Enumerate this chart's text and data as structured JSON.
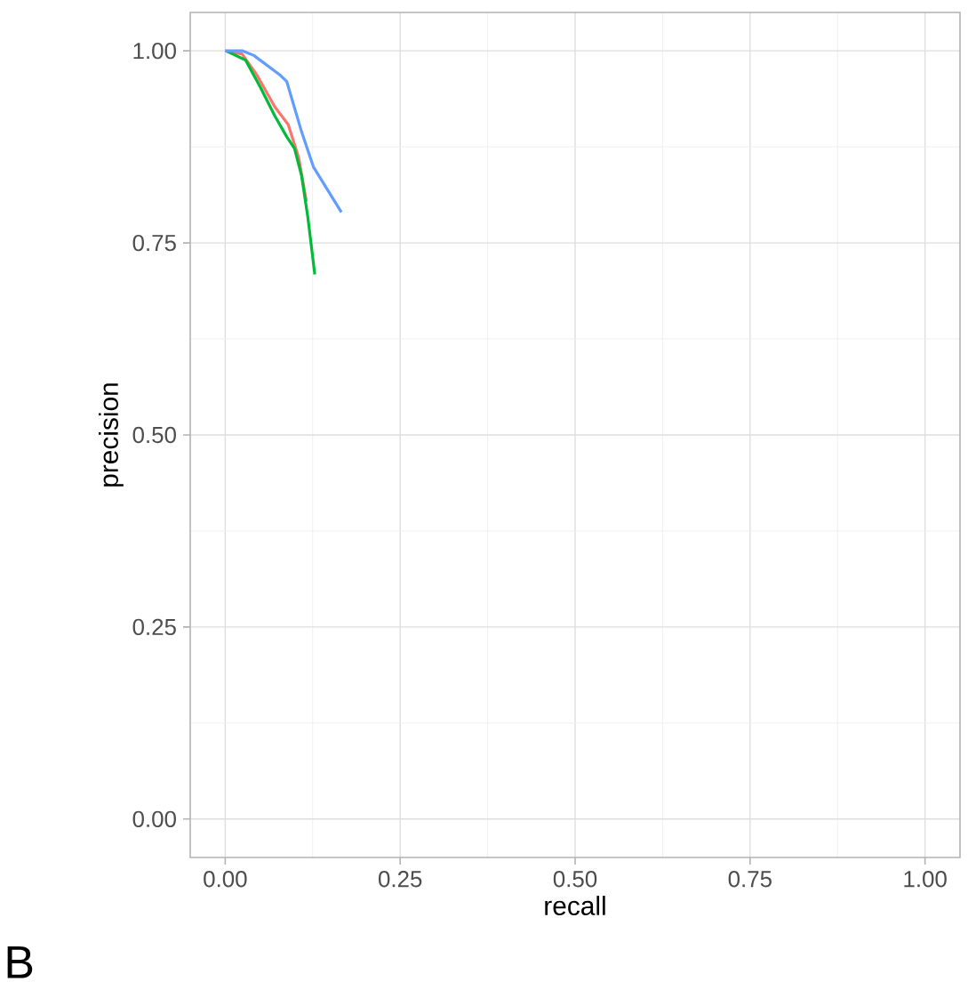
{
  "chart_data": {
    "type": "line",
    "xlabel": "recall",
    "ylabel": "precision",
    "xlim": [
      -0.05,
      1.05
    ],
    "ylim": [
      -0.05,
      1.05
    ],
    "xticks": [
      {
        "value": 0,
        "label": "0.00"
      },
      {
        "value": 0.25,
        "label": "0.25"
      },
      {
        "value": 0.5,
        "label": "0.50"
      },
      {
        "value": 0.75,
        "label": "0.75"
      },
      {
        "value": 1,
        "label": "1.00"
      }
    ],
    "yticks": [
      {
        "value": 0,
        "label": "0.00"
      },
      {
        "value": 0.25,
        "label": "0.25"
      },
      {
        "value": 0.5,
        "label": "0.50"
      },
      {
        "value": 0.75,
        "label": "0.75"
      },
      {
        "value": 1,
        "label": "1.00"
      }
    ],
    "grid": true,
    "annotations": [
      "B"
    ],
    "series": [
      {
        "color": "#F8766D",
        "x": [
          0,
          0.024,
          0.045,
          0.071,
          0.09,
          0.105,
          0.116
        ],
        "values": [
          1.0,
          0.996,
          0.969,
          0.927,
          0.904,
          0.861,
          0.804
        ]
      },
      {
        "color": "#00BA38",
        "x": [
          0.001,
          0.029,
          0.05,
          0.071,
          0.088,
          0.099,
          0.109,
          0.118,
          0.128
        ],
        "values": [
          1.0,
          0.988,
          0.953,
          0.915,
          0.888,
          0.873,
          0.838,
          0.784,
          0.709
        ]
      },
      {
        "color": "#619CFF",
        "x": [
          0,
          0.025,
          0.041,
          0.079,
          0.088,
          0.109,
          0.126,
          0.147,
          0.166
        ],
        "values": [
          1.0,
          1.0,
          0.994,
          0.968,
          0.96,
          0.895,
          0.849,
          0.818,
          0.79
        ]
      }
    ]
  }
}
